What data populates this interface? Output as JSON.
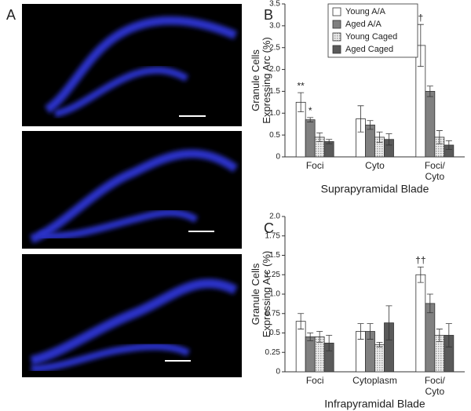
{
  "panel_labels": [
    "A",
    "B",
    "C"
  ],
  "chart_data": [
    {
      "type": "bar",
      "ylabel": "Granule Cells\nExpressing Arc (%)",
      "xlabel": "Suprapyramidal Blade",
      "categories": [
        "Foci",
        "Cyto",
        "Foci/\nCyto"
      ],
      "ylim": [
        0,
        3.5
      ],
      "yticks": [
        0,
        0.5,
        {
          "value": 1,
          "label": "1.0"
        },
        1.5,
        {
          "value": 2,
          "label": "2.0"
        },
        2.5,
        {
          "value": 3,
          "label": "3.0"
        },
        3.5
      ],
      "legend": "top-left",
      "series": [
        {
          "name": "Young A/A",
          "color": "#ffffff",
          "values": [
            1.25,
            0.87,
            2.55
          ],
          "errors": [
            0.22,
            0.3,
            0.48
          ]
        },
        {
          "name": "Aged A/A",
          "color": "#808080",
          "values": [
            0.85,
            0.73,
            1.5
          ],
          "errors": [
            0.05,
            0.1,
            0.12
          ]
        },
        {
          "name": "Young Caged",
          "color": "#d4d4d4",
          "values": [
            0.45,
            0.45,
            0.45
          ],
          "errors": [
            0.1,
            0.12,
            0.15
          ]
        },
        {
          "name": "Aged Caged",
          "color": "#5a5a5a",
          "values": [
            0.35,
            0.4,
            0.27
          ],
          "errors": [
            0.05,
            0.13,
            0.1
          ]
        }
      ],
      "annotations": [
        {
          "text": "**",
          "category": 0,
          "series": 0
        },
        {
          "text": "*",
          "category": 0,
          "series": 1
        },
        {
          "text": "†",
          "category": 2,
          "series": 0
        }
      ]
    },
    {
      "type": "bar",
      "ylabel": "Granule Cells\nExpressing Arc (%)",
      "xlabel": "Infrapyramidal Blade",
      "categories": [
        "Foci",
        "Cytoplasm",
        "Foci/\nCyto"
      ],
      "ylim": [
        0,
        2
      ],
      "yticks": [
        0,
        0.25,
        0.5,
        0.75,
        {
          "value": 1,
          "label": "1.0"
        },
        1.25,
        1.5,
        1.75,
        {
          "value": 2,
          "label": "2.0"
        }
      ],
      "series": [
        {
          "color": "#ffffff",
          "values": [
            0.65,
            0.52,
            1.25
          ],
          "errors": [
            0.1,
            0.1,
            0.1
          ]
        },
        {
          "color": "#808080",
          "values": [
            0.45,
            0.52,
            0.88
          ],
          "errors": [
            0.05,
            0.1,
            0.12
          ]
        },
        {
          "color": "#d4d4d4",
          "values": [
            0.45,
            0.35,
            0.47
          ],
          "errors": [
            0.07,
            0.03,
            0.08
          ]
        },
        {
          "color": "#5a5a5a",
          "values": [
            0.37,
            0.63,
            0.47
          ],
          "errors": [
            0.1,
            0.22,
            0.15
          ]
        }
      ],
      "annotations": [
        {
          "text": "††",
          "category": 2,
          "series": 0
        }
      ]
    }
  ]
}
